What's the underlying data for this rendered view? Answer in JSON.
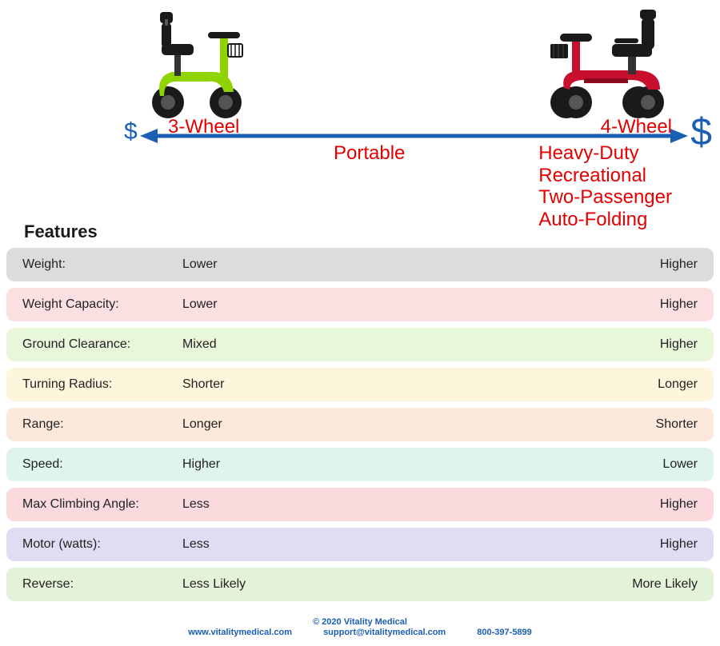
{
  "arrow": {
    "color": "#1b5fb4",
    "dollar_left": "$",
    "dollar_right": "$"
  },
  "labels": {
    "left_type": "3-Wheel",
    "center": "Portable",
    "right_type": "4-Wheel",
    "right_extra": [
      "Heavy-Duty",
      "Recreational",
      "Two-Passenger",
      "Auto-Folding"
    ],
    "text_color": "#e30000",
    "fontsize": 24
  },
  "features_heading": "Features",
  "rows": [
    {
      "label": "Weight:",
      "left": "Lower",
      "right": "Higher",
      "bg": "#dcdcdc"
    },
    {
      "label": "Weight Capacity:",
      "left": "Lower",
      "right": "Higher",
      "bg": "#fbe0e1"
    },
    {
      "label": "Ground Clearance:",
      "left": "Mixed",
      "right": "Higher",
      "bg": "#e8f6da"
    },
    {
      "label": "Turning Radius:",
      "left": "Shorter",
      "right": "Longer",
      "bg": "#fdf6dc"
    },
    {
      "label": "Range:",
      "left": "Longer",
      "right": "Shorter",
      "bg": "#fce9dc"
    },
    {
      "label": "Speed:",
      "left": "Higher",
      "right": "Lower",
      "bg": "#dff4ef"
    },
    {
      "label": "Max Climbing Angle:",
      "left": "Less",
      "right": "Higher",
      "bg": "#fadadc"
    },
    {
      "label": "Motor (watts):",
      "left": "Less",
      "right": "Higher",
      "bg": "#e1dcf4"
    },
    {
      "label": "Reverse:",
      "left": "Less Likely",
      "right": "More Likely",
      "bg": "#e3f2d8"
    }
  ],
  "footer": {
    "copyright": "© 2020   Vitality Medical",
    "website": "www.vitalitymedical.com",
    "email": "support@vitalitymedical.com",
    "phone": "800-397-5899",
    "color": "#1b5fb4"
  },
  "scooter_left": {
    "body_color": "#8fd400",
    "wheel_color": "#1a1a1a",
    "seat_color": "#1a1a1a"
  },
  "scooter_right": {
    "body_color": "#c8102e",
    "wheel_color": "#1a1a1a",
    "seat_color": "#1a1a1a"
  }
}
